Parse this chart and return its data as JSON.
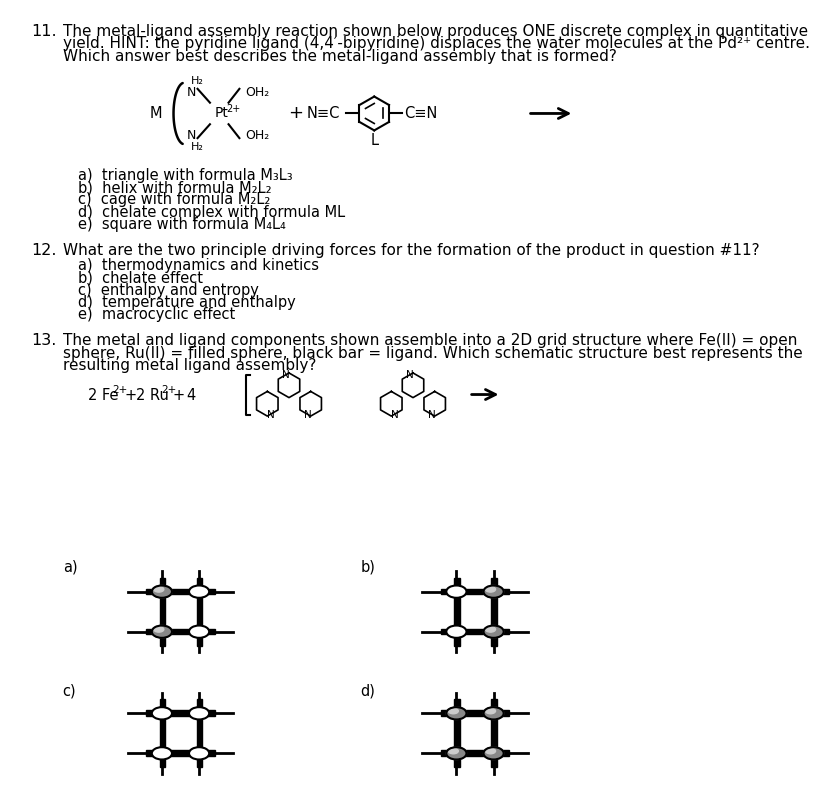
{
  "bg_color": "#ffffff",
  "text_color": "#000000",
  "q11_number": "11.",
  "q11_text_line1": "The metal-ligand assembly reaction shown below produces ONE discrete complex in quantitative",
  "q11_text_line2": "yield. HINT: the pyridine ligand (4,4′-bipyridine) displaces the water molecules at the Pd²⁺ centre.",
  "q11_text_line3": "Which answer best describes the metal-ligand assembly that is formed?",
  "q11_options": [
    "a)  triangle with formula M₃L₃",
    "b)  helix with formula M₂L₂",
    "c)  cage with formula M₂L₂",
    "d)  chelate complex with formula ML",
    "e)  square with formula M₄L₄"
  ],
  "q12_number": "12.",
  "q12_text": "What are the two principle driving forces for the formation of the product in question #11?",
  "q12_options": [
    "a)  thermodynamics and kinetics",
    "b)  chelate effect",
    "c)  enthalpy and entropy",
    "d)  temperature and enthalpy",
    "e)  macrocyclic effect"
  ],
  "q13_number": "13.",
  "q13_text_line1": "The metal and ligand components shown assemble into a 2D grid structure where Fe(II) = open",
  "q13_text_line2": "sphere, Ru(II) = filled sphere, black bar = ligand. Which schematic structure best represents the",
  "q13_text_line3": "resulting metal ligand assembly?"
}
